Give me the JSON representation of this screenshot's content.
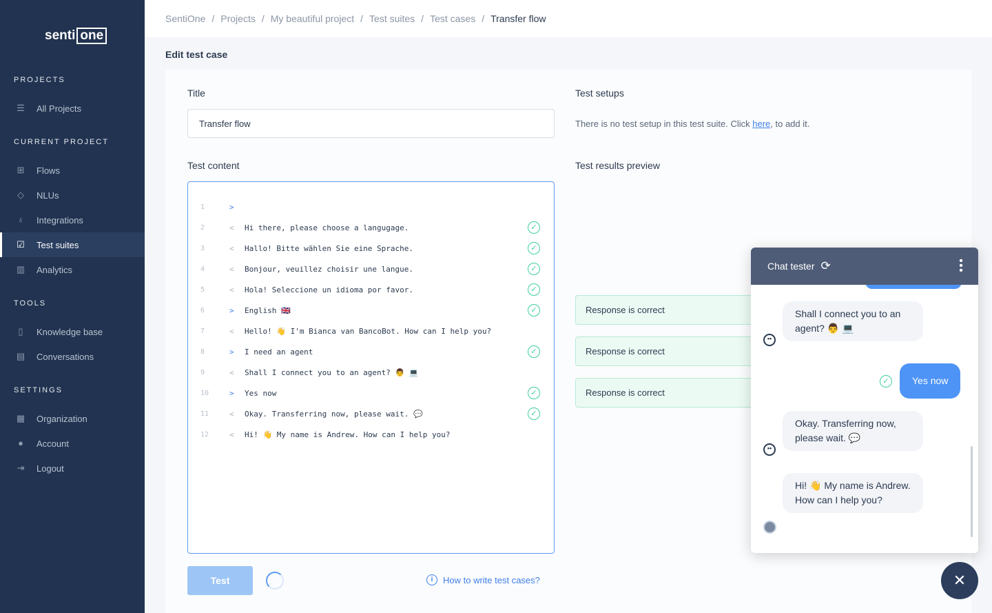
{
  "sidebar": {
    "logo": "sentione",
    "sections": {
      "projects": "PROJECTS",
      "current": "CURRENT PROJECT",
      "tools": "TOOLS",
      "settings": "SETTINGS"
    },
    "items": [
      {
        "label": "All Projects",
        "icon": "list-icon"
      },
      {
        "label": "Flows",
        "icon": "flows-icon"
      },
      {
        "label": "NLUs",
        "icon": "graduation-cap-icon"
      },
      {
        "label": "Integrations",
        "icon": "plug-icon"
      },
      {
        "label": "Test suites",
        "icon": "checklist-icon",
        "active": true
      },
      {
        "label": "Analytics",
        "icon": "chart-icon"
      },
      {
        "label": "Knowledge base",
        "icon": "book-icon"
      },
      {
        "label": "Conversations",
        "icon": "message-icon"
      },
      {
        "label": "Organization",
        "icon": "building-icon"
      },
      {
        "label": "Account",
        "icon": "user-icon"
      },
      {
        "label": "Logout",
        "icon": "logout-icon"
      }
    ]
  },
  "breadcrumb": [
    "SentiOne",
    "Projects",
    "My beautiful project",
    "Test suites",
    "Test cases",
    "Transfer flow"
  ],
  "page_title": "Edit test case",
  "form": {
    "title_label": "Title",
    "title_value": "Transfer flow",
    "content_label": "Test content",
    "setups_label": "Test setups",
    "setups_text_pre": "There is no test setup in this test suite. Click ",
    "setups_link": "here",
    "setups_text_post": ", to add it.",
    "preview_label": "Test results preview"
  },
  "lines": [
    {
      "n": "1",
      "dir": ">",
      "text": "",
      "ok": false
    },
    {
      "n": "2",
      "dir": "<",
      "text": "Hi there, please choose a langugage.",
      "ok": true
    },
    {
      "n": "3",
      "dir": "<",
      "text": "Hallo! Bitte wählen Sie eine Sprache.",
      "ok": true
    },
    {
      "n": "4",
      "dir": "<",
      "text": "Bonjour, veuillez choisir une langue.",
      "ok": true
    },
    {
      "n": "5",
      "dir": "<",
      "text": "Hola! Seleccione un idioma por favor.",
      "ok": true
    },
    {
      "n": "6",
      "dir": ">",
      "text": "English 🇬🇧",
      "ok": true
    },
    {
      "n": "7",
      "dir": "<",
      "text": "Hello! 👋 I'm Bianca van BancoBot. How can I help you?",
      "ok": false
    },
    {
      "n": "8",
      "dir": ">",
      "text": "I need an agent",
      "ok": true
    },
    {
      "n": "9",
      "dir": "<",
      "text": "Shall I connect you to an agent? 👨 💻",
      "ok": false
    },
    {
      "n": "10",
      "dir": ">",
      "text": "Yes now",
      "ok": true
    },
    {
      "n": "11",
      "dir": "<",
      "text": "Okay. Transferring now, please wait. 💬",
      "ok": true
    },
    {
      "n": "12",
      "dir": "<",
      "text": "Hi! 👋 My name is Andrew. How can I help you?",
      "ok": false
    }
  ],
  "actions": {
    "test": "Test",
    "help": "How to write test cases?"
  },
  "responses": [
    "Response is correct",
    "Response is correct",
    "Response is correct"
  ],
  "chat": {
    "title": "Chat tester",
    "messages": [
      {
        "from": "bot",
        "text": "Shall I connect you to an agent? 👨 💻"
      },
      {
        "from": "user",
        "text": "Yes now"
      },
      {
        "from": "bot",
        "text": "Okay. Transferring now, please wait. 💬"
      },
      {
        "from": "agent",
        "text": "Hi! 👋 My name is Andrew. How can I help you?"
      }
    ]
  },
  "colors": {
    "sidebar": "#213350",
    "accent": "#3f7fe8",
    "success": "#3ecf9a"
  }
}
